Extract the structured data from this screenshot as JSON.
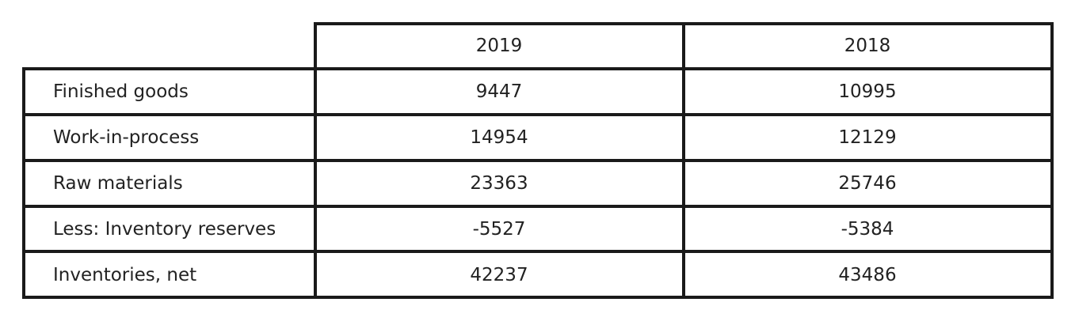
{
  "chart_data": {
    "type": "table",
    "columns": [
      "",
      "2019",
      "2018"
    ],
    "rows": [
      {
        "label": "Finished goods",
        "values": [
          "9447",
          "10995"
        ]
      },
      {
        "label": "Work-in-process",
        "values": [
          "14954",
          "12129"
        ]
      },
      {
        "label": "Raw materials",
        "values": [
          "23363",
          "25746"
        ]
      },
      {
        "label": "Less: Inventory reserves",
        "values": [
          "-5527",
          "-5384"
        ]
      },
      {
        "label": "Inventories, net",
        "values": [
          "42237",
          "43486"
        ]
      }
    ]
  }
}
